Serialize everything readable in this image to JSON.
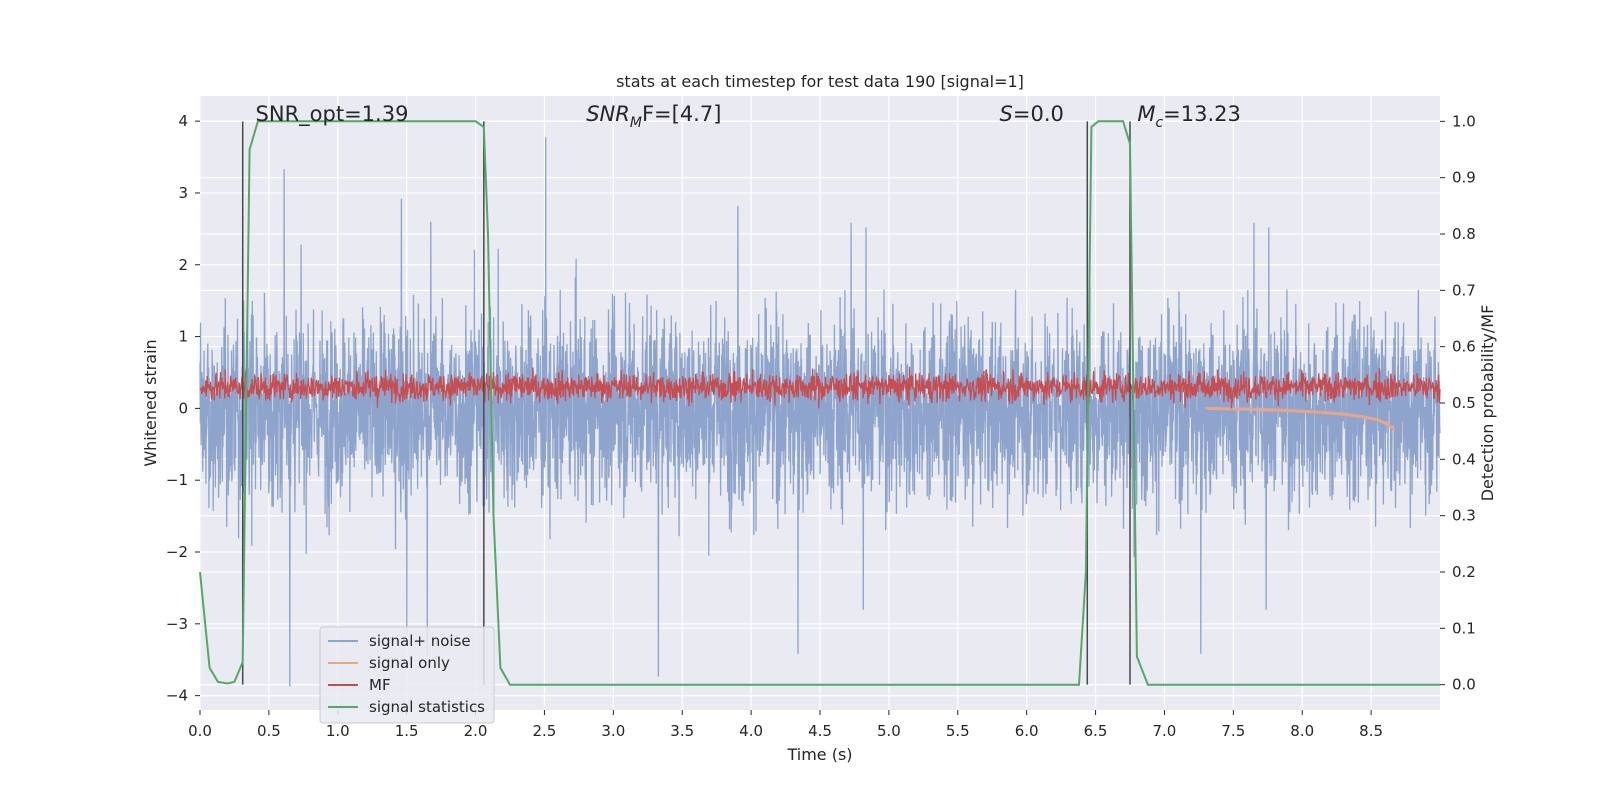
{
  "chart_data": {
    "type": "line",
    "title": "stats at each timestep for test data 190 [signal=1]",
    "xlabel": "Time (s)",
    "ylabel": "Whitened strain",
    "y2label": "Detection probability/MF",
    "xlim": [
      0,
      9
    ],
    "ylim": [
      -4.2,
      4.35
    ],
    "y2lim": [
      -0.045,
      1.045
    ],
    "x_ticks": [
      0.0,
      0.5,
      1.0,
      1.5,
      2.0,
      2.5,
      3.0,
      3.5,
      4.0,
      4.5,
      5.0,
      5.5,
      6.0,
      6.5,
      7.0,
      7.5,
      8.0,
      8.5
    ],
    "x_tick_labels": [
      "0.0",
      "0.5",
      "1.0",
      "1.5",
      "2.0",
      "2.5",
      "3.0",
      "3.5",
      "4.0",
      "4.5",
      "5.0",
      "5.5",
      "6.0",
      "6.5",
      "7.0",
      "7.5",
      "8.0",
      "8.5"
    ],
    "y_ticks": [
      -4,
      -3,
      -2,
      -1,
      0,
      1,
      2,
      3,
      4
    ],
    "y_tick_labels": [
      "−4",
      "−3",
      "−2",
      "−1",
      "0",
      "1",
      "2",
      "3",
      "4"
    ],
    "y2_ticks": [
      0.0,
      0.1,
      0.2,
      0.3,
      0.4,
      0.5,
      0.6,
      0.7,
      0.8,
      0.9,
      1.0
    ],
    "y2_tick_labels": [
      "0.0",
      "0.1",
      "0.2",
      "0.3",
      "0.4",
      "0.5",
      "0.6",
      "0.7",
      "0.8",
      "0.9",
      "1.0"
    ],
    "grid": true,
    "legend_position": "bottom-left",
    "annotations": [
      {
        "x": 0.2,
        "y": 4.0,
        "label": "SNR_opt=1.39"
      },
      {
        "x": 2.6,
        "y": 4.0,
        "label": "SNR_MF=[4.7]",
        "base": "SNR",
        "sub": "M",
        "rest": "F=[4.7]"
      },
      {
        "x": 5.6,
        "y": 4.0,
        "label": "S=0.0",
        "base": "S",
        "rest": "=0.0"
      },
      {
        "x": 6.6,
        "y": 4.0,
        "label": "M_c=13.23",
        "base": "M",
        "sub": "c",
        "rest": "=13.23"
      }
    ],
    "vertical_lines_x": [
      0.31,
      2.06,
      6.44,
      6.75
    ],
    "series": [
      {
        "name": "signal+ noise",
        "color": "#8fa4cc",
        "axis": "left",
        "description": "whitened strain noise, roughly uniform amplitude about ±2.2 with spikes to about ±3.9",
        "amplitude": 2.2,
        "peak": 3.9
      },
      {
        "name": "signal only",
        "color": "#e8a58a",
        "axis": "left",
        "x": [
          7.3,
          7.6,
          7.9,
          8.1,
          8.3,
          8.45,
          8.55,
          8.62,
          8.67
        ],
        "y": [
          0.0,
          -0.01,
          -0.03,
          -0.05,
          -0.08,
          -0.12,
          -0.16,
          -0.22,
          -0.3
        ]
      },
      {
        "name": "MF",
        "color": "#c44e52",
        "axis": "left",
        "description": "matched filter output fluctuating between about 0.0 and 0.8, peak about 1.0",
        "mean": 0.3,
        "amplitude": 0.45
      },
      {
        "name": "signal statistics",
        "color": "#55a868",
        "axis": "right",
        "x": [
          0.0,
          0.07,
          0.13,
          0.2,
          0.25,
          0.31,
          0.36,
          0.42,
          0.47,
          2.0,
          2.06,
          2.09,
          2.13,
          2.18,
          2.25,
          6.38,
          6.43,
          6.47,
          6.52,
          6.7,
          6.75,
          6.8,
          6.88,
          9.0
        ],
        "y": [
          0.2,
          0.03,
          0.005,
          0.002,
          0.005,
          0.04,
          0.95,
          1.0,
          1.0,
          1.0,
          0.99,
          0.8,
          0.3,
          0.03,
          0.0,
          0.0,
          0.2,
          0.99,
          1.0,
          1.0,
          0.96,
          0.05,
          0.0,
          0.0
        ]
      }
    ]
  }
}
